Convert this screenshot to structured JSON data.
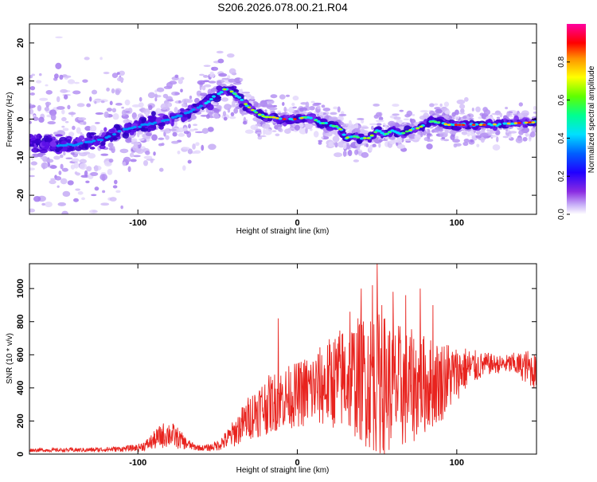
{
  "title": "S206.2026.078.00.21.R04",
  "colors": {
    "snr_line": "#e8231e",
    "track": "#4400cc",
    "colormap": [
      "#ffffff",
      "#d8c8f8",
      "#8a4cf0",
      "#3300d8",
      "#0000ff",
      "#00c8ff",
      "#00ff80",
      "#80ff00",
      "#ffff00",
      "#ff8000",
      "#ff0000",
      "#ff00a0"
    ]
  },
  "chart_data": [
    {
      "type": "heatmap",
      "xlabel": "Height of straight line (km)",
      "ylabel": "Frequency (Hz)",
      "xlim": [
        -168,
        150
      ],
      "ylim": [
        -25,
        25
      ],
      "xticks": [
        -100,
        0,
        100
      ],
      "xtick_labels": [
        "-100",
        "0",
        "100"
      ],
      "yticks": [
        -20,
        -10,
        0,
        10,
        20
      ],
      "ytick_labels": [
        "-20",
        "-10",
        "0",
        "10",
        "20"
      ],
      "ridge": {
        "x": [
          -168,
          -150,
          -135,
          -120,
          -110,
          -100,
          -90,
          -80,
          -70,
          -60,
          -55,
          -50,
          -45,
          -40,
          -35,
          -30,
          -25,
          -20,
          -15,
          -10,
          -5,
          0,
          5,
          10,
          15,
          20,
          25,
          28,
          30,
          35,
          40,
          45,
          50,
          55,
          60,
          65,
          70,
          75,
          80,
          85,
          90,
          95,
          100,
          110,
          120,
          130,
          140,
          150
        ],
        "y": [
          -6,
          -7,
          -6.5,
          -5,
          -3,
          -2,
          -1,
          0,
          1.5,
          3.5,
          5,
          6.5,
          8,
          7,
          5,
          3,
          1.5,
          0.5,
          0.5,
          0,
          0,
          0,
          0.5,
          0,
          -1,
          -1.5,
          -2,
          -3,
          -5,
          -4.5,
          -5,
          -5,
          -3,
          -4,
          -3,
          -4,
          -3,
          -2.5,
          -1.5,
          -0.5,
          -1,
          -1.5,
          -1.5,
          -1.5,
          -1.5,
          -1.2,
          -1,
          -0.8
        ]
      },
      "colorbar": {
        "label": "Normalized spectral amplitude",
        "range": [
          0,
          1
        ],
        "ticks": [
          0.0,
          0.2,
          0.4,
          0.6,
          0.8
        ],
        "tick_labels": [
          "0.0",
          "0.2",
          "0.4",
          "0.6",
          "0.8"
        ]
      }
    },
    {
      "type": "line",
      "xlabel": "Height of straight line (km)",
      "ylabel": "SNR (10 * v/v)",
      "xlim": [
        -168,
        150
      ],
      "ylim": [
        0,
        1150
      ],
      "xticks": [
        -100,
        0,
        100
      ],
      "xtick_labels": [
        "-100",
        "0",
        "100"
      ],
      "yticks": [
        0,
        200,
        400,
        600,
        800,
        1000
      ],
      "ytick_labels": [
        "0",
        "200",
        "400",
        "600",
        "800",
        "1000"
      ],
      "series": [
        {
          "name": "SNR",
          "envelope": {
            "x": [
              -168,
              -150,
              -130,
              -110,
              -100,
              -95,
              -90,
              -85,
              -80,
              -75,
              -70,
              -65,
              -60,
              -55,
              -50,
              -45,
              -40,
              -35,
              -30,
              -25,
              -20,
              -15,
              -10,
              -5,
              0,
              5,
              10,
              15,
              20,
              25,
              30,
              35,
              40,
              45,
              50,
              55,
              60,
              65,
              70,
              75,
              80,
              85,
              90,
              95,
              100,
              105,
              110,
              115,
              120,
              125,
              130,
              135,
              140,
              145,
              150
            ],
            "base": [
              20,
              20,
              20,
              25,
              30,
              40,
              60,
              80,
              90,
              70,
              50,
              35,
              30,
              30,
              40,
              60,
              90,
              130,
              170,
              200,
              220,
              240,
              260,
              270,
              280,
              290,
              300,
              310,
              320,
              330,
              330,
              320,
              300,
              280,
              260,
              250,
              240,
              250,
              260,
              280,
              300,
              320,
              340,
              380,
              420,
              460,
              480,
              500,
              520,
              520,
              520,
              520,
              500,
              480,
              450
            ],
            "amp": [
              20,
              20,
              25,
              30,
              40,
              60,
              100,
              140,
              150,
              120,
              70,
              40,
              30,
              40,
              60,
              100,
              150,
              200,
              250,
              300,
              320,
              330,
              340,
              350,
              360,
              400,
              420,
              450,
              500,
              550,
              600,
              650,
              700,
              780,
              800,
              780,
              720,
              700,
              650,
              600,
              550,
              500,
              450,
              400,
              300,
              250,
              200,
              150,
              120,
              100,
              100,
              120,
              150,
              200,
              200
            ]
          },
          "peaks": [
            {
              "x": -12,
              "y": 820
            },
            {
              "x": 33,
              "y": 860
            },
            {
              "x": 40,
              "y": 1000
            },
            {
              "x": 47,
              "y": 1020
            },
            {
              "x": 50,
              "y": 1150
            },
            {
              "x": 53,
              "y": 900
            },
            {
              "x": 60,
              "y": 980
            },
            {
              "x": 68,
              "y": 960
            },
            {
              "x": 77,
              "y": 1000
            },
            {
              "x": 85,
              "y": 900
            },
            {
              "x": 92,
              "y": 650
            }
          ]
        }
      ]
    }
  ]
}
